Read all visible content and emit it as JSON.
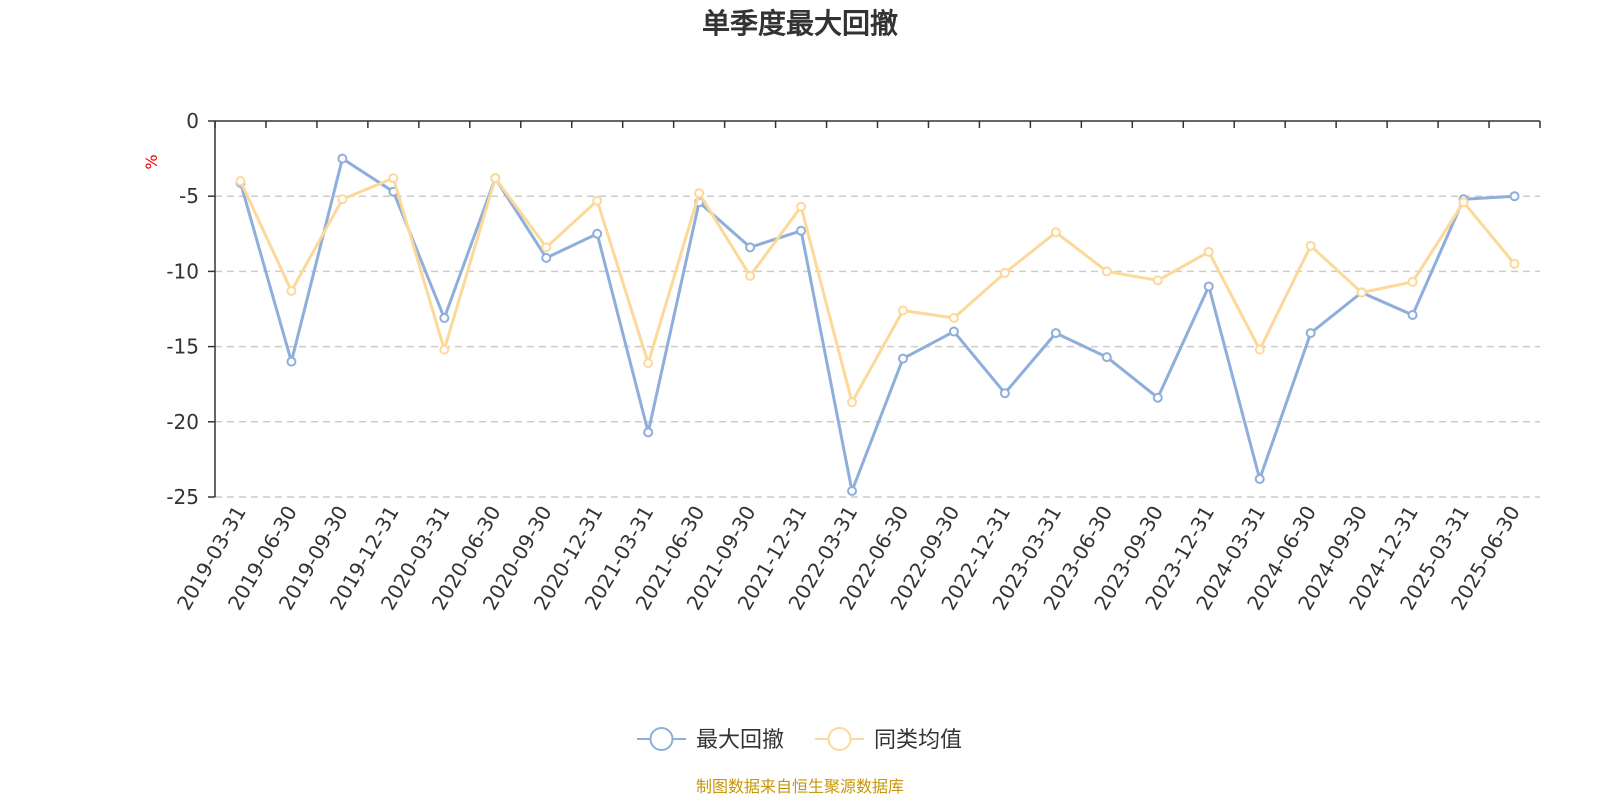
{
  "chart_data": {
    "type": "line",
    "title": "单季度最大回撤",
    "ylabel": "%",
    "ylim": [
      -25,
      0
    ],
    "yticks": [
      0,
      -5,
      -10,
      -15,
      -20,
      -25
    ],
    "ytick_labels": [
      "0",
      "-5",
      "-10",
      "-15",
      "-20",
      "-25"
    ],
    "grid": true,
    "legend_position": "bottom-center",
    "categories": [
      "2019-03-31",
      "2019-06-30",
      "2019-09-30",
      "2019-12-31",
      "2020-03-31",
      "2020-06-30",
      "2020-09-30",
      "2020-12-31",
      "2021-03-31",
      "2021-06-30",
      "2021-09-30",
      "2021-12-31",
      "2022-03-31",
      "2022-06-30",
      "2022-09-30",
      "2022-12-31",
      "2023-03-31",
      "2023-06-30",
      "2023-09-30",
      "2023-12-31",
      "2024-03-31",
      "2024-06-30",
      "2024-09-30",
      "2024-12-31",
      "2025-03-31",
      "2025-06-30"
    ],
    "series": [
      {
        "name": "最大回撤",
        "color": "#8eaedb",
        "values": [
          -4.1,
          -16.0,
          -2.5,
          -4.7,
          -13.1,
          -3.8,
          -9.1,
          -7.5,
          -20.7,
          -5.4,
          -8.4,
          -7.3,
          -24.6,
          -15.8,
          -14.0,
          -18.1,
          -14.1,
          -15.7,
          -18.4,
          -11.0,
          -23.8,
          -14.1,
          -11.4,
          -12.9,
          -5.2,
          -5.0
        ]
      },
      {
        "name": "同类均值",
        "color": "#fcd99a",
        "values": [
          -4.0,
          -11.3,
          -5.2,
          -3.8,
          -15.2,
          -3.8,
          -8.4,
          -5.3,
          -16.1,
          -4.8,
          -10.3,
          -5.7,
          -18.7,
          -12.6,
          -13.1,
          -10.1,
          -7.4,
          -10.0,
          -10.6,
          -8.7,
          -15.2,
          -8.3,
          -11.4,
          -10.7,
          -5.4,
          -9.5
        ]
      }
    ]
  },
  "footer": {
    "source": "制图数据来自恒生聚源数据库"
  }
}
